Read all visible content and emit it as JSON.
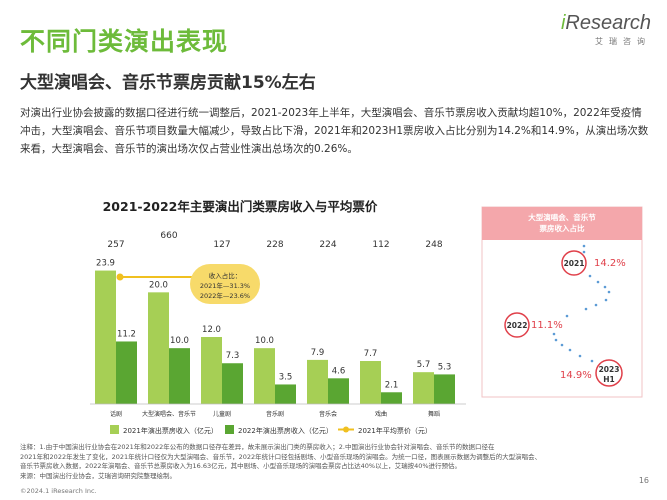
{
  "header": {
    "title": "不同门类演出表现",
    "subtitle": "大型演唱会、音乐节票房贡献15%左右",
    "logo_main": "Research",
    "logo_i": "i",
    "logo_sub": "艾瑞咨询"
  },
  "body": {
    "paragraph": "对演出行业协会披露的数据口径进行统一调整后，2021-2023年上半年，大型演唱会、音乐节票房收入贡献均超10%，2022年受疫情冲击，大型演唱会、音乐节项目数量大幅减少，导致占比下滑，2021年和2023H1票房收入占比分别为14.2%和14.9%，从演出场次数来看，大型演唱会、音乐节的演出场次仅占营业性演出总场次的0.26%。"
  },
  "chart_data": [
    {
      "type": "bar",
      "title": "2021-2022年主要演出门类票房收入与平均票价",
      "categories": [
        "话剧",
        "大型演唱会、音乐节",
        "儿童剧",
        "音乐剧",
        "音乐会",
        "戏曲",
        "舞蹈"
      ],
      "series": [
        {
          "name": "2021年演出票房收入（亿元）",
          "values": [
            23.9,
            20.0,
            12.0,
            10.0,
            7.9,
            7.7,
            5.7
          ]
        },
        {
          "name": "2022年演出票房收入（亿元）",
          "values": [
            11.2,
            10.0,
            7.3,
            3.5,
            4.6,
            2.1,
            5.3
          ]
        },
        {
          "name": "2021年平均票价（元）",
          "values": [
            257,
            660,
            127,
            228,
            224,
            112,
            248
          ]
        }
      ],
      "annotation": {
        "title": "收入占比：",
        "line1": "2021年—31.3%",
        "line2": "2022年—23.6%"
      },
      "legend_position": "bottom",
      "colors": {
        "bar2021": "#a6cf55",
        "bar2022": "#5aa632",
        "price": "#f0c020"
      }
    },
    {
      "type": "line",
      "title": "大型演唱会、音乐节票房收入占比",
      "x": [
        "2021",
        "2022",
        "2023 H1"
      ],
      "values": [
        14.2,
        11.1,
        14.9
      ],
      "labels": [
        "14.2%",
        "11.1%",
        "14.9%"
      ],
      "year_labels": [
        "2021",
        "2022",
        "2023",
        "H1"
      ],
      "colors": {
        "accent": "#e0404a",
        "header_bg": "#f4a7ab",
        "dots": "#5b9bd5"
      }
    }
  ],
  "footer": {
    "note1": "注释：1.由于中国演出行业协会在2021年和2022年公布的数据口径存在差异，故未展示演出门类的票房收入；2.中国演出行业协会针对演唱会、音乐节的数据口径在",
    "note2": "2021年和2022年发生了变化，2021年统计口径仅为大型演唱会、音乐节，2022年统计口径包括剧场、小型音乐现场的演唱会。为统一口径，图表展示数据为调整后的大型演唱会、",
    "note3": "音乐节票房收入数据，2022年演唱会、音乐节总票房收入为16.63亿元，其中剧场、小型音乐现场的演唱会票房占比达40%以上，艾瑞按40%进行预估。",
    "source": "来源：中国演出行业协会，艾瑞咨询研究院整理绘制。",
    "copyright": "©2024.1 iResearch Inc.",
    "page": "16"
  }
}
